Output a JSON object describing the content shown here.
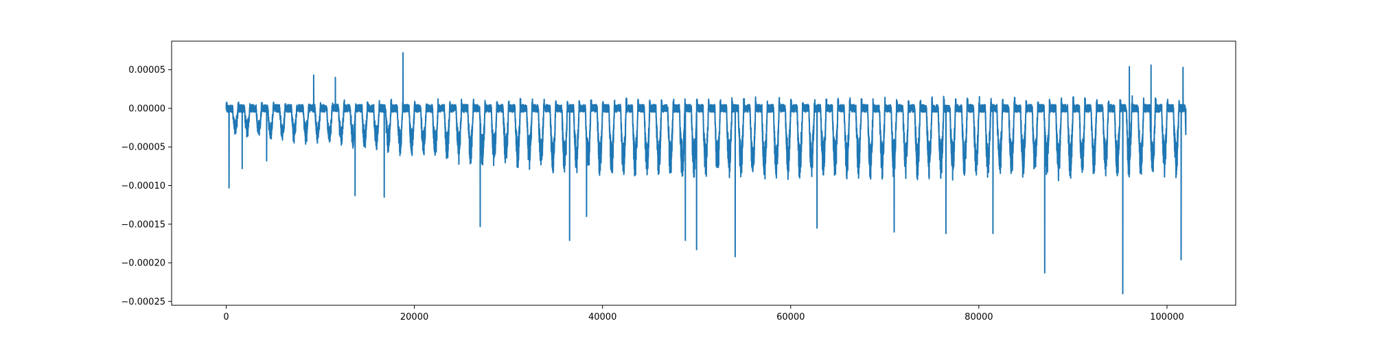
{
  "chart_data": {
    "type": "line",
    "title": "",
    "xlabel": "",
    "ylabel": "",
    "xlim": [
      -5800,
      107300
    ],
    "ylim": [
      -0.000255,
      8.7e-05
    ],
    "grid": false,
    "legend": "none",
    "x_ticks": [
      {
        "value": 0,
        "label": "0"
      },
      {
        "value": 20000,
        "label": "20000"
      },
      {
        "value": 40000,
        "label": "40000"
      },
      {
        "value": 60000,
        "label": "60000"
      },
      {
        "value": 80000,
        "label": "80000"
      },
      {
        "value": 100000,
        "label": "100000"
      }
    ],
    "y_ticks": [
      {
        "value": 5e-05,
        "label": "0.00005"
      },
      {
        "value": 0.0,
        "label": "0.00000"
      },
      {
        "value": -5e-05,
        "label": "−0.00005"
      },
      {
        "value": -0.0001,
        "label": "−0.00010"
      },
      {
        "value": -0.00015,
        "label": "−0.00015"
      },
      {
        "value": -0.0002,
        "label": "−0.00020"
      },
      {
        "value": -0.00025,
        "label": "−0.00025"
      }
    ],
    "series": [
      {
        "color": "#1f77b4",
        "x_start": 0,
        "x_end": 102000,
        "baseline": 0.0,
        "cycle_length": 1250,
        "description_of_shape": "periodic oscillation around zero with repeated negative dips",
        "key_points": [
          {
            "x": 0,
            "y": 0.0
          },
          {
            "x": 300,
            "y": -0.000103
          },
          {
            "x": 1700,
            "y": -7.8e-05
          },
          {
            "x": 4300,
            "y": -6.8e-05
          },
          {
            "x": 9300,
            "y": 4.3e-05
          },
          {
            "x": 11600,
            "y": 4e-05
          },
          {
            "x": 13700,
            "y": -0.000113
          },
          {
            "x": 16800,
            "y": -0.000115
          },
          {
            "x": 18800,
            "y": 7.2e-05
          },
          {
            "x": 27000,
            "y": -0.000153
          },
          {
            "x": 36500,
            "y": -0.000171
          },
          {
            "x": 38300,
            "y": -0.00014
          },
          {
            "x": 48800,
            "y": -0.000171
          },
          {
            "x": 50000,
            "y": -0.000183
          },
          {
            "x": 54100,
            "y": -0.000192
          },
          {
            "x": 62800,
            "y": -0.000155
          },
          {
            "x": 71000,
            "y": -0.00016
          },
          {
            "x": 76500,
            "y": -0.000162
          },
          {
            "x": 81500,
            "y": -0.000162
          },
          {
            "x": 87000,
            "y": -0.000213
          },
          {
            "x": 95300,
            "y": -0.00024
          },
          {
            "x": 96000,
            "y": 5.4e-05
          },
          {
            "x": 98300,
            "y": 5.6e-05
          },
          {
            "x": 101500,
            "y": -0.000196
          },
          {
            "x": 101700,
            "y": 5.3e-05
          },
          {
            "x": 102000,
            "y": 0.0
          }
        ]
      }
    ]
  }
}
